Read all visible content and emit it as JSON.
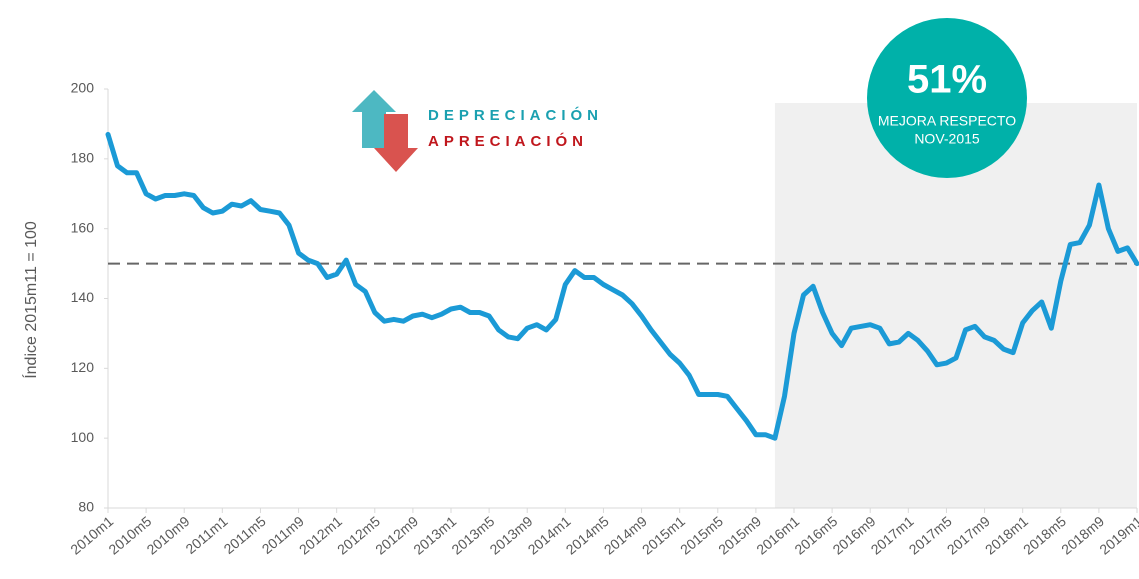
{
  "chart_data": {
    "type": "line",
    "ylabel": "Índice 2015m11 = 100",
    "categories": [
      "2010m1",
      null,
      null,
      null,
      "2010m5",
      null,
      null,
      null,
      "2010m9",
      null,
      null,
      null,
      "2011m1",
      null,
      null,
      null,
      "2011m5",
      null,
      null,
      null,
      "2011m9",
      null,
      null,
      null,
      "2012m1",
      null,
      null,
      null,
      "2012m5",
      null,
      null,
      null,
      "2012m9",
      null,
      null,
      null,
      "2013m1",
      null,
      null,
      null,
      "2013m5",
      null,
      null,
      null,
      "2013m9",
      null,
      null,
      null,
      "2014m1",
      null,
      null,
      null,
      "2014m5",
      null,
      null,
      null,
      "2014m9",
      null,
      null,
      null,
      "2015m1",
      null,
      null,
      null,
      "2015m5",
      null,
      null,
      null,
      "2015m9",
      null,
      null,
      null,
      "2016m1",
      null,
      null,
      null,
      "2016m5",
      null,
      null,
      null,
      "2016m9",
      null,
      null,
      null,
      "2017m1",
      null,
      null,
      null,
      "2017m5",
      null,
      null,
      null,
      "2017m9",
      null,
      null,
      null,
      "2018m1",
      null,
      null,
      null,
      "2018m5",
      null,
      null,
      null,
      "2018m9",
      null,
      null,
      null,
      "2019m1"
    ],
    "series": [
      {
        "color": "#1b9ad6",
        "values": [
          187,
          178,
          176,
          176,
          170,
          168.5,
          169.5,
          169.5,
          170,
          169.5,
          166,
          164.5,
          165,
          167,
          166.5,
          168,
          165.5,
          165,
          164.5,
          161,
          153,
          151,
          150,
          146,
          147,
          151,
          144,
          142,
          136,
          133.5,
          134,
          133.5,
          135,
          135.5,
          134.5,
          135.5,
          137,
          137.5,
          136,
          136,
          135,
          131,
          129,
          128.5,
          131.5,
          132.5,
          131,
          134,
          144,
          148,
          146,
          146,
          144,
          142.5,
          141,
          138.5,
          135,
          131,
          127.5,
          124,
          121.5,
          118,
          112.5,
          112.5,
          112.5,
          112,
          108.5,
          105,
          101,
          101,
          100,
          112,
          130,
          141,
          143.5,
          136,
          130,
          126.5,
          131.5,
          132,
          132.5,
          131.5,
          127,
          127.5,
          130,
          128,
          125,
          121,
          121.5,
          123,
          131,
          132,
          129,
          128,
          125.5,
          124.5,
          133,
          136.5,
          139,
          131.5,
          145,
          155.5,
          156,
          161,
          172.5,
          160,
          153.5,
          154.5,
          150
        ]
      }
    ],
    "ylim": [
      80,
      200
    ],
    "yticks": [
      80,
      100,
      120,
      140,
      160,
      180,
      200
    ],
    "reference_line": 150,
    "shaded_x": [
      70,
      108
    ],
    "legend": {
      "up": "DEPRECIACIÓN",
      "down": "APRECIACIÓN"
    },
    "badge": {
      "value": "51%",
      "line1": "MEJORA RESPECTO",
      "line2": "NOV-2015"
    }
  }
}
